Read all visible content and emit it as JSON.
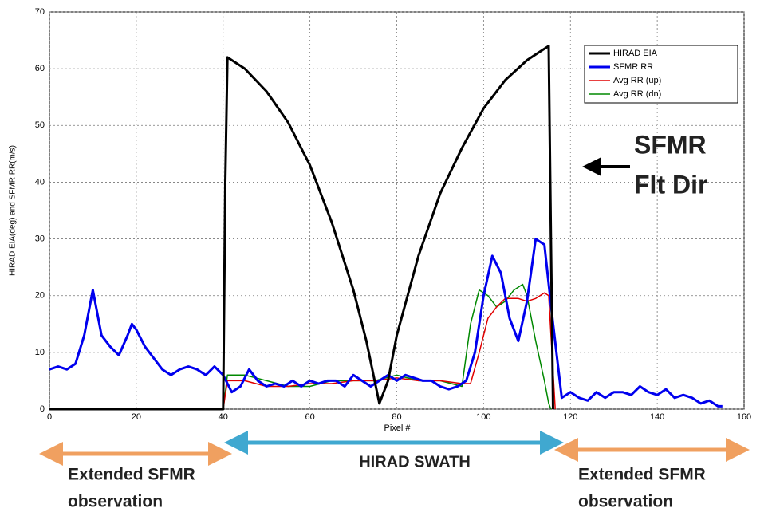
{
  "chart_data": {
    "type": "line",
    "xlabel": "Pixel #",
    "ylabel": "HIRAD EIA(deg) and SFMR RR(m/s)",
    "xlim": [
      0,
      160
    ],
    "ylim": [
      0,
      70
    ],
    "xticks": [
      0,
      20,
      40,
      60,
      80,
      100,
      120,
      140,
      160
    ],
    "yticks": [
      0,
      10,
      20,
      30,
      40,
      50,
      60,
      70
    ],
    "grid": true,
    "legend": "upper right",
    "series": [
      {
        "name": "HIRAD EIA",
        "color": "#000000",
        "width": 3,
        "x": [
          0,
          40,
          40.5,
          41,
          45,
          50,
          55,
          60,
          65,
          70,
          73,
          76,
          78,
          80,
          85,
          90,
          95,
          100,
          105,
          110,
          113,
          115,
          115.5,
          116
        ],
        "values": [
          0,
          0,
          40,
          62,
          60,
          56,
          50.5,
          43,
          33,
          21,
          12,
          1,
          5,
          13,
          27,
          38,
          46,
          53,
          58,
          61.5,
          63,
          64,
          30,
          0
        ]
      },
      {
        "name": "SFMR RR",
        "color": "#0000ee",
        "width": 3,
        "x": [
          0,
          2,
          4,
          6,
          8,
          10,
          12,
          14,
          16,
          18,
          19,
          20,
          22,
          24,
          26,
          28,
          30,
          32,
          34,
          36,
          38,
          40,
          42,
          44,
          46,
          48,
          50,
          52,
          54,
          56,
          58,
          60,
          62,
          64,
          66,
          68,
          70,
          72,
          74,
          76,
          78,
          80,
          82,
          84,
          86,
          88,
          90,
          92,
          94,
          96,
          98,
          100,
          102,
          104,
          106,
          108,
          110,
          112,
          114,
          116,
          118,
          120,
          122,
          124,
          126,
          128,
          130,
          132,
          134,
          136,
          138,
          140,
          142,
          144,
          146,
          148,
          150,
          152,
          154,
          155
        ],
        "values": [
          7,
          7.5,
          7,
          8,
          13,
          21,
          13,
          11,
          9.5,
          13,
          15,
          14,
          11,
          9,
          7,
          6,
          7,
          7.5,
          7,
          6,
          7.5,
          6,
          3,
          4,
          7,
          5,
          4,
          4.5,
          4,
          5,
          4,
          5,
          4.5,
          5,
          5,
          4,
          6,
          5,
          4,
          5,
          6,
          5,
          6,
          5.5,
          5,
          5,
          4,
          3.5,
          4,
          5,
          10,
          20,
          27,
          24,
          16,
          12,
          19,
          30,
          29,
          15,
          2,
          3,
          2,
          1.5,
          3,
          2,
          3,
          3,
          2.5,
          4,
          3,
          2.5,
          3.5,
          2,
          2.5,
          2,
          1,
          1.5,
          0.5,
          0.5
        ]
      },
      {
        "name": "Avg RR (up)",
        "color": "#e00000",
        "width": 1.5,
        "x": [
          0,
          40,
          41,
          45,
          50,
          55,
          60,
          65,
          70,
          75,
          80,
          85,
          90,
          95,
          97,
          99,
          101,
          103,
          105,
          108,
          110,
          112,
          114,
          115,
          116.5
        ],
        "values": [
          0,
          0,
          5,
          5,
          4,
          4,
          4.5,
          4.5,
          5,
          5,
          5.5,
          5,
          5,
          4.5,
          4.5,
          10,
          16,
          18,
          19.5,
          19.5,
          19,
          19.5,
          20.5,
          20,
          0
        ]
      },
      {
        "name": "Avg RR (dn)",
        "color": "#008800",
        "width": 1.5,
        "x": [
          0,
          40,
          41,
          45,
          50,
          55,
          60,
          65,
          70,
          75,
          80,
          85,
          90,
          95,
          97,
          99,
          101,
          103,
          105,
          107,
          109,
          110,
          112,
          114,
          115,
          115.5
        ],
        "values": [
          0,
          0,
          6,
          6,
          5,
          4,
          4,
          5,
          5,
          5,
          6,
          5,
          5,
          4,
          15,
          21,
          20,
          18,
          19,
          21,
          22,
          20,
          12,
          5,
          1,
          0
        ]
      }
    ],
    "annotations": {
      "direction_label": [
        "SFMR",
        "Flt Dir"
      ],
      "left_label": [
        "Extended SFMR",
        "observation"
      ],
      "swath_label": "HIRAD SWATH",
      "right_label": [
        "Extended SFMR",
        "observation"
      ]
    }
  }
}
